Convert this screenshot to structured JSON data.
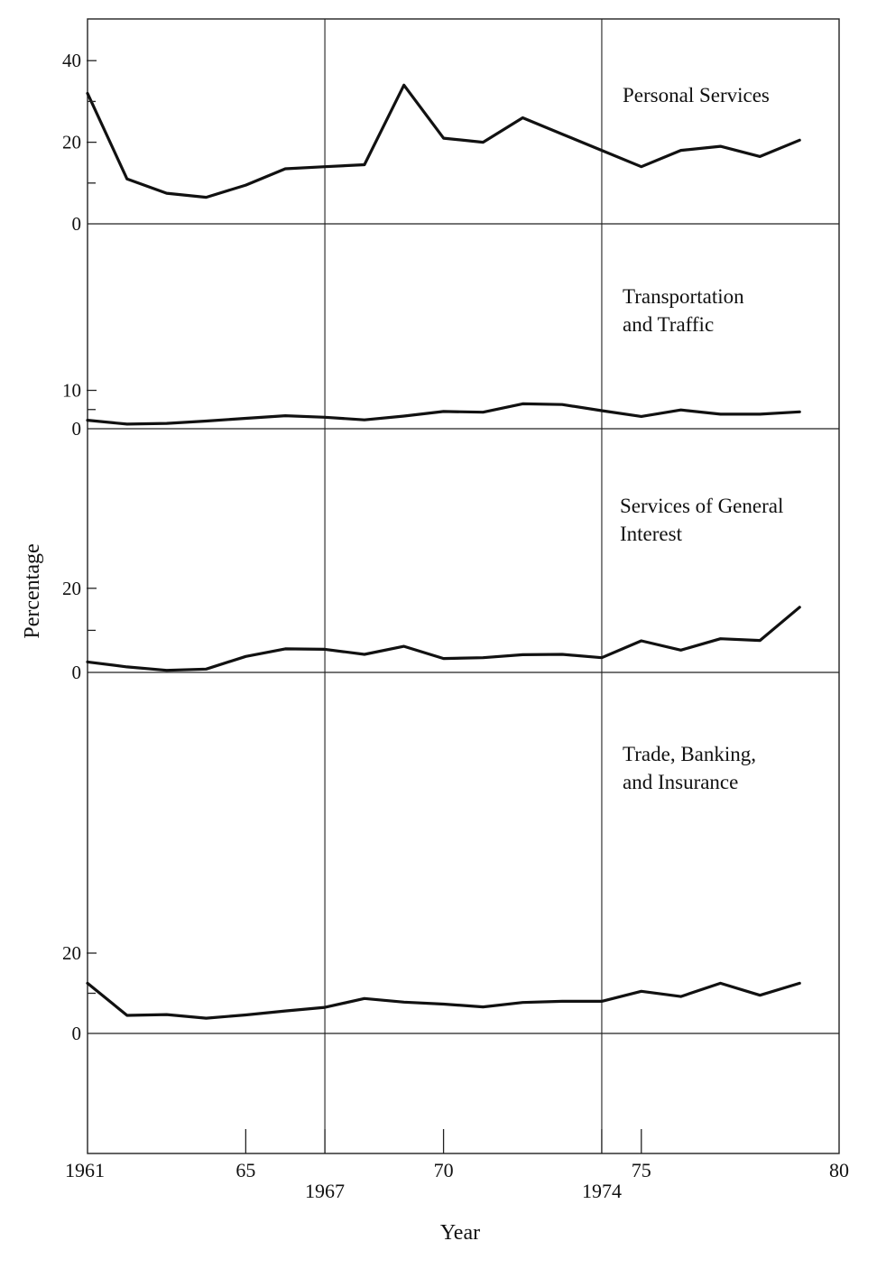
{
  "chart_data": {
    "type": "line",
    "xlabel": "Year",
    "ylabel": "Percentage",
    "xlim": [
      1961,
      1980
    ],
    "x_ticks": [
      {
        "value": 1961,
        "label": "1961",
        "row": 1
      },
      {
        "value": 1965,
        "label": "65",
        "row": 1
      },
      {
        "value": 1967,
        "label": "1967",
        "row": 2
      },
      {
        "value": 1970,
        "label": "70",
        "row": 1
      },
      {
        "value": 1974,
        "label": "1974",
        "row": 2
      },
      {
        "value": 1975,
        "label": "75",
        "row": 1
      },
      {
        "value": 1980,
        "label": "80",
        "row": 1
      }
    ],
    "vertical_reference_years": [
      1967,
      1974
    ],
    "grid": false,
    "x": [
      1961,
      1962,
      1963,
      1964,
      1965,
      1966,
      1967,
      1968,
      1969,
      1970,
      1971,
      1972,
      1973,
      1974,
      1975,
      1976,
      1977,
      1978,
      1979
    ],
    "panels": [
      {
        "name": "Personal Services",
        "label_lines": [
          "Personal Services"
        ],
        "ylim": [
          0,
          40
        ],
        "y_ticks": [
          {
            "value": 0,
            "label": "0"
          },
          {
            "value": 20,
            "label": "20"
          },
          {
            "value": 40,
            "label": "40"
          }
        ],
        "values": [
          32,
          11,
          7.5,
          6.5,
          9.5,
          13.5,
          14,
          14.5,
          34,
          21,
          20,
          26,
          22,
          18,
          14,
          18,
          19,
          16.5,
          20.5
        ]
      },
      {
        "name": "Transportation and Traffic",
        "label_lines": [
          "Transportation",
          "and Traffic"
        ],
        "ylim": [
          0,
          10
        ],
        "y_ticks": [
          {
            "value": 0,
            "label": "0"
          },
          {
            "value": 10,
            "label": "10"
          }
        ],
        "values": [
          2.2,
          1.2,
          1.4,
          2,
          2.7,
          3.4,
          3,
          2.3,
          3.3,
          4.5,
          4.3,
          6.5,
          6.3,
          4.7,
          3.2,
          4.9,
          3.8,
          3.8,
          4.4
        ]
      },
      {
        "name": "Services of General Interest",
        "label_lines": [
          "Services of General",
          "Interest"
        ],
        "ylim": [
          0,
          20
        ],
        "y_ticks": [
          {
            "value": 0,
            "label": "0"
          },
          {
            "value": 20,
            "label": "20"
          }
        ],
        "values": [
          2.5,
          1.3,
          0.5,
          0.8,
          3.8,
          5.6,
          5.5,
          4.3,
          6.2,
          3.3,
          3.5,
          4.2,
          4.3,
          3.5,
          7.5,
          5.3,
          8,
          7.6,
          15.5
        ]
      },
      {
        "name": "Trade, Banking, and Insurance",
        "label_lines": [
          "Trade, Banking,",
          "and Insurance"
        ],
        "ylim": [
          0,
          20
        ],
        "y_ticks": [
          {
            "value": 0,
            "label": "0"
          },
          {
            "value": 20,
            "label": "20"
          }
        ],
        "values": [
          12.5,
          4.5,
          4.7,
          3.8,
          4.6,
          5.6,
          6.5,
          8.7,
          7.8,
          7.3,
          6.6,
          7.7,
          8,
          8,
          10.5,
          9.2,
          12.5,
          9.5,
          12.5
        ]
      }
    ]
  }
}
